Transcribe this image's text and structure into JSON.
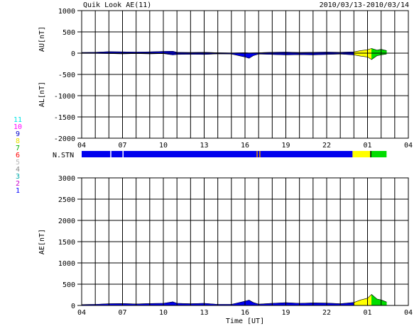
{
  "header": {
    "title": "Quik Look AE(11)",
    "date_range": "2010/03/13-2010/03/14"
  },
  "station_legend": {
    "numbers": [
      "11",
      "10",
      "9",
      "8",
      "7",
      "6",
      "5",
      "4",
      "3",
      "2",
      "1"
    ],
    "colors": [
      "#00e5e5",
      "#ff00ff",
      "#0000cc",
      "#e8e000",
      "#00b000",
      "#ff0000",
      "#bbbbbb",
      "#888888",
      "#00aaaa",
      "#cc00cc",
      "#0000ff"
    ]
  },
  "nstn_label": "N.STN",
  "xlabel": "Time [UT]",
  "colors": {
    "station_blue": "#0000ee",
    "station_yellow": "#ffff00",
    "station_green": "#00dd00",
    "station_orange": "#e09000",
    "grid": "#000000"
  },
  "chart_data": [
    {
      "type": "area",
      "title": "AU / AL",
      "ylabel_top": "AU[nT]",
      "ylabel_bottom": "AL[nT]",
      "ylim": [
        -2000,
        1000
      ],
      "yticks": [
        1000,
        500,
        0,
        -500,
        -1000,
        -1500,
        -2000
      ],
      "xlim": [
        4,
        28
      ],
      "xtick_labels": [
        "04",
        "07",
        "10",
        "13",
        "16",
        "19",
        "22",
        "01",
        "04"
      ],
      "grid": "on",
      "au": {
        "x": [
          4,
          5,
          6,
          7,
          8,
          9,
          10,
          10.7,
          11,
          12,
          13,
          14,
          15,
          16,
          16.3,
          17,
          18,
          19,
          20,
          21,
          22,
          23,
          24,
          24.5,
          25,
          25.3,
          25.7,
          26,
          26.4
        ],
        "y": [
          15,
          20,
          35,
          30,
          25,
          30,
          40,
          45,
          20,
          15,
          20,
          10,
          5,
          10,
          5,
          10,
          20,
          25,
          15,
          20,
          25,
          20,
          30,
          60,
          80,
          110,
          70,
          90,
          60
        ]
      },
      "al": {
        "x": [
          4,
          5,
          6,
          7,
          8,
          9,
          10,
          10.7,
          11,
          12,
          13,
          14,
          15,
          16,
          16.3,
          16.6,
          17,
          18,
          19,
          20,
          21,
          22,
          23,
          24,
          24.5,
          25,
          25.3,
          25.7,
          26,
          26.4
        ],
        "y": [
          -5,
          -5,
          -10,
          -15,
          -10,
          -15,
          -10,
          -40,
          -30,
          -25,
          -30,
          -15,
          -20,
          -90,
          -120,
          -60,
          -20,
          -30,
          -40,
          -35,
          -40,
          -30,
          -20,
          -40,
          -70,
          -90,
          -150,
          -60,
          -40,
          -20
        ]
      },
      "station_count_periods": [
        {
          "from": 4,
          "to": 23.9,
          "stations": 9
        },
        {
          "from": 23.9,
          "to": 25.2,
          "stations": 8
        },
        {
          "from": 25.2,
          "to": 26.4,
          "stations": 7
        }
      ]
    },
    {
      "type": "area",
      "title": "AE",
      "ylabel": "AE[nT]",
      "ylim": [
        0,
        3000
      ],
      "yticks": [
        3000,
        2500,
        2000,
        1500,
        1000,
        500,
        0
      ],
      "xlim": [
        4,
        28
      ],
      "xtick_labels": [
        "04",
        "07",
        "10",
        "13",
        "16",
        "19",
        "22",
        "01",
        "04"
      ],
      "grid": "on",
      "ae": {
        "x": [
          4,
          5,
          6,
          7,
          8,
          9,
          10,
          10.7,
          11,
          12,
          13,
          14,
          15,
          16,
          16.3,
          16.6,
          17,
          18,
          19,
          20,
          21,
          22,
          23,
          24,
          24.5,
          25,
          25.3,
          25.7,
          26,
          26.4
        ],
        "y": [
          20,
          25,
          40,
          45,
          35,
          45,
          50,
          85,
          50,
          40,
          50,
          25,
          25,
          100,
          125,
          70,
          30,
          50,
          65,
          50,
          60,
          55,
          40,
          70,
          130,
          170,
          260,
          150,
          130,
          80
        ]
      }
    }
  ]
}
